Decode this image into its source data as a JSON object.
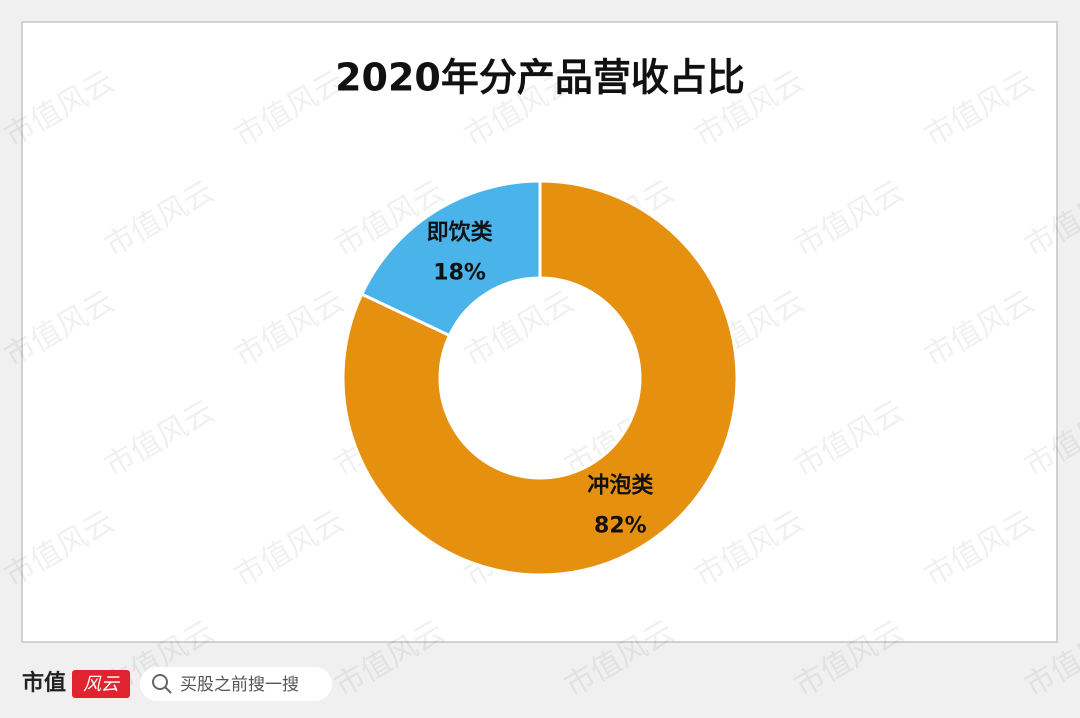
{
  "chart_data": {
    "type": "donut",
    "title": "2020年分产品营收占比",
    "categories": [
      "冲泡类",
      "即饮类"
    ],
    "values": [
      82,
      18
    ],
    "value_labels": [
      "82%",
      "18%"
    ],
    "colors": [
      "#e69010",
      "#4ab3ea"
    ]
  },
  "watermark": "市值风云",
  "footer": {
    "brand": "市值",
    "brand_badge": "风云",
    "search_placeholder": "买股之前搜一搜"
  }
}
